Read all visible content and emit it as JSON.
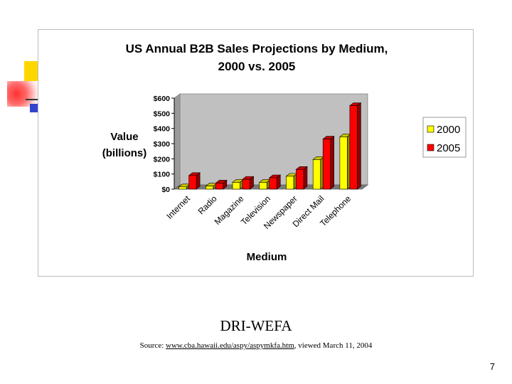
{
  "chart_data": {
    "type": "bar",
    "title_line1": "US Annual B2B Sales Projections by Medium,",
    "title_line2": "2000 vs. 2005",
    "xlabel": "Medium",
    "ylabel_line1": "Value",
    "ylabel_line2": "(billions)",
    "categories": [
      "Internet",
      "Radio",
      "Magazine",
      "Television",
      "Newspaper",
      "Direct Mail",
      "Telephone"
    ],
    "series": [
      {
        "name": "2000",
        "color": "#ffff00",
        "values": [
          15,
          20,
          45,
          45,
          85,
          195,
          345
        ]
      },
      {
        "name": "2005",
        "color": "#ff0000",
        "values": [
          90,
          40,
          65,
          75,
          130,
          330,
          550
        ]
      }
    ],
    "ylim": [
      0,
      600
    ],
    "yticks": [
      0,
      100,
      200,
      300,
      400,
      500,
      600
    ],
    "ytick_labels": [
      "$0",
      "$100",
      "$200",
      "$300",
      "$400",
      "$500",
      "$600"
    ],
    "grid": false,
    "legend_position": "right",
    "plot_background": "#c0c0c0"
  },
  "source": {
    "name": "DRI-WEFA",
    "prefix": "Source: ",
    "url": "www.cba.hawaii.edu/aspy/aspymkfa.htm",
    "suffix": ", viewed March 11, 2004"
  },
  "page_number": "7"
}
